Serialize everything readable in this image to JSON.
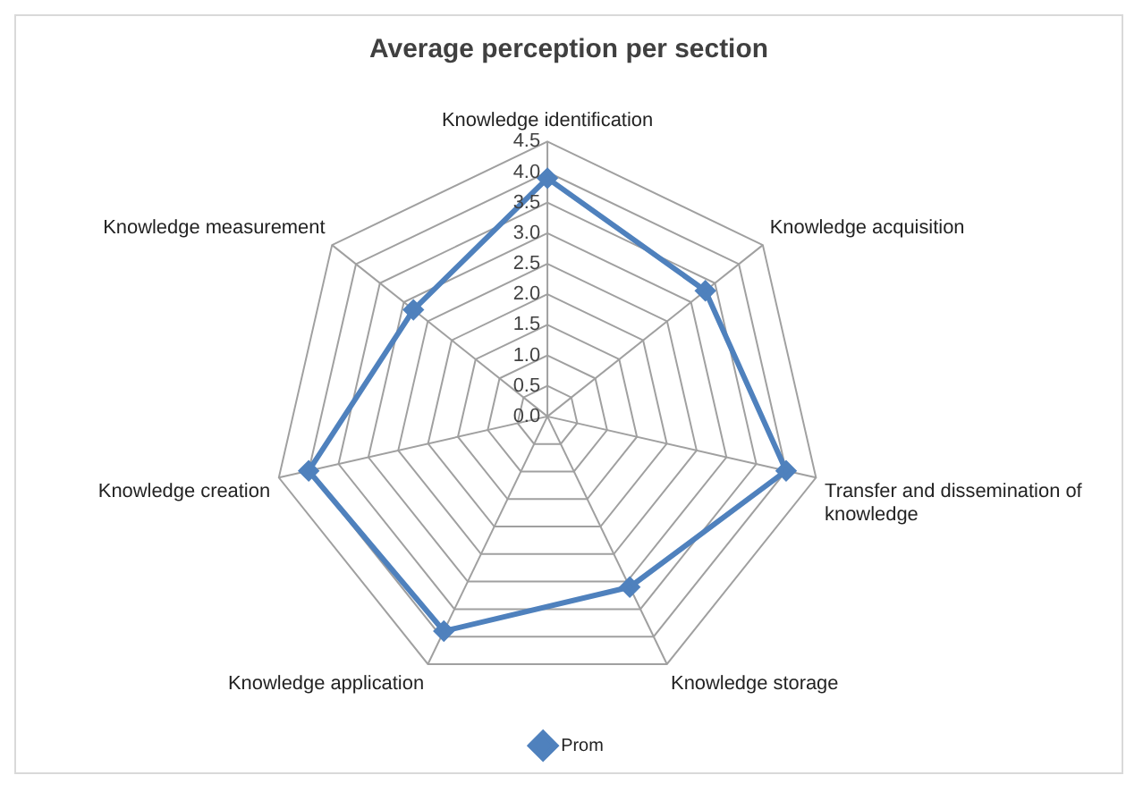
{
  "chart_data": {
    "type": "radar",
    "title": "Average perception per section",
    "categories": [
      "Knowledge identification",
      "Knowledge acquisition",
      "Transfer and dissemination of knowledge",
      "Knowledge storage",
      "Knowledge application",
      "Knowledge creation",
      "Knowledge measurement"
    ],
    "series": [
      {
        "name": "Prom",
        "color": "#4f81bd",
        "values": [
          3.9,
          3.3,
          4.0,
          3.1,
          3.9,
          4.0,
          2.8
        ]
      }
    ],
    "ylim": [
      0,
      4.5
    ],
    "yticks": [
      {
        "value": 0,
        "label": "0.0"
      },
      0.5,
      {
        "value": 1,
        "label": "1.0"
      },
      1.5,
      {
        "value": 2,
        "label": "2.0"
      },
      2.5,
      {
        "value": 3,
        "label": "3.0"
      },
      3.5,
      {
        "value": 4,
        "label": "4.0"
      },
      4.5
    ],
    "legend": "bottom",
    "marker": "diamond",
    "grid": true
  }
}
